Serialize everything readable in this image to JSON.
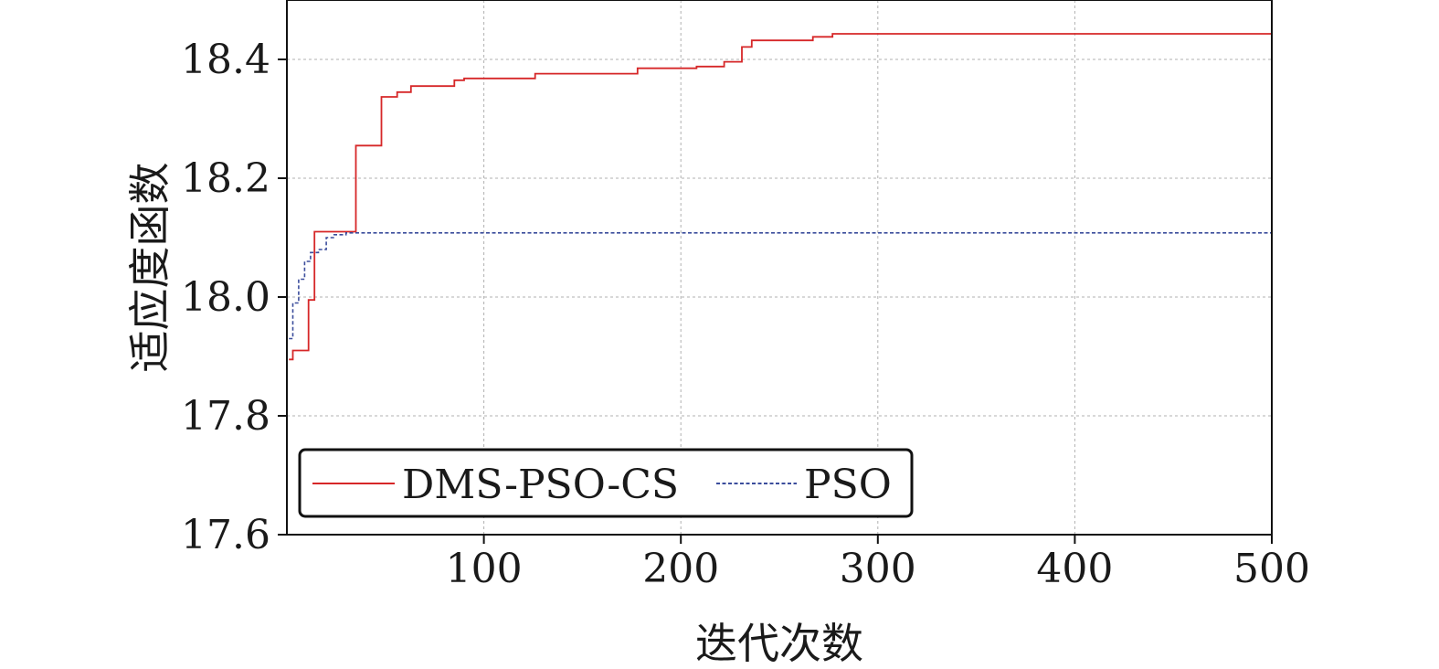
{
  "chart_data": {
    "type": "line",
    "xlabel": "迭代次数",
    "ylabel": "适应度函数",
    "xlim": [
      0,
      500
    ],
    "ylim": [
      17.6,
      18.5
    ],
    "x_ticks": [
      100,
      200,
      300,
      400,
      500
    ],
    "x_tick_labels": [
      "100",
      "200",
      "300",
      "400",
      "500"
    ],
    "y_ticks": [
      17.6,
      17.8,
      18.0,
      18.2,
      18.4
    ],
    "y_tick_labels": [
      "17.6",
      "17.8",
      "18.0",
      "18.2",
      "18.4"
    ],
    "grid": true,
    "legend_position": "bottom-left",
    "series": [
      {
        "name": "DMS-PSO-CS",
        "color": "#d62728",
        "line_style": "solid",
        "step": true,
        "points": [
          [
            1,
            17.895
          ],
          [
            3,
            17.91
          ],
          [
            11,
            17.995
          ],
          [
            14,
            18.11
          ],
          [
            35,
            18.255
          ],
          [
            48,
            18.337
          ],
          [
            56,
            18.345
          ],
          [
            63,
            18.355
          ],
          [
            85,
            18.365
          ],
          [
            90,
            18.368
          ],
          [
            126,
            18.376
          ],
          [
            178,
            18.385
          ],
          [
            208,
            18.388
          ],
          [
            222,
            18.396
          ],
          [
            231,
            18.421
          ],
          [
            236,
            18.432
          ],
          [
            267,
            18.438
          ],
          [
            277,
            18.443
          ],
          [
            500,
            18.443
          ]
        ]
      },
      {
        "name": "PSO",
        "color": "#3b4d9c",
        "line_style": "dashed",
        "step": true,
        "points": [
          [
            1,
            17.93
          ],
          [
            3,
            17.99
          ],
          [
            6,
            18.03
          ],
          [
            9,
            18.06
          ],
          [
            12,
            18.075
          ],
          [
            16,
            18.08
          ],
          [
            20,
            18.1
          ],
          [
            24,
            18.105
          ],
          [
            30,
            18.108
          ],
          [
            500,
            18.108
          ]
        ]
      }
    ]
  }
}
